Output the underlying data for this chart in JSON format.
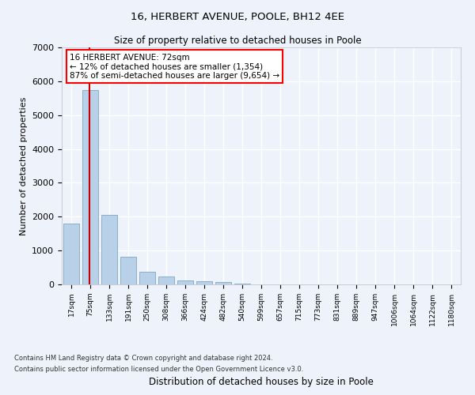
{
  "title1": "16, HERBERT AVENUE, POOLE, BH12 4EE",
  "title2": "Size of property relative to detached houses in Poole",
  "xlabel": "Distribution of detached houses by size in Poole",
  "ylabel": "Number of detached properties",
  "categories": [
    "17sqm",
    "75sqm",
    "133sqm",
    "191sqm",
    "250sqm",
    "308sqm",
    "366sqm",
    "424sqm",
    "482sqm",
    "540sqm",
    "599sqm",
    "657sqm",
    "715sqm",
    "773sqm",
    "831sqm",
    "889sqm",
    "947sqm",
    "1006sqm",
    "1064sqm",
    "1122sqm",
    "1180sqm"
  ],
  "values": [
    1800,
    5750,
    2050,
    820,
    370,
    235,
    120,
    90,
    60,
    30,
    5,
    0,
    0,
    0,
    0,
    0,
    0,
    0,
    0,
    0,
    0
  ],
  "bar_color": "#b8d0e8",
  "bar_edge_color": "#8aafc8",
  "annotation_line1": "16 HERBERT AVENUE: 72sqm",
  "annotation_line2": "← 12% of detached houses are smaller (1,354)",
  "annotation_line3": "87% of semi-detached houses are larger (9,654) →",
  "property_line_color": "#cc0000",
  "background_color": "#eef2fa",
  "plot_background": "#eef2fa",
  "grid_color": "#ffffff",
  "footer1": "Contains HM Land Registry data © Crown copyright and database right 2024.",
  "footer2": "Contains public sector information licensed under the Open Government Licence v3.0.",
  "ylim": [
    0,
    7000
  ],
  "yticks": [
    0,
    1000,
    2000,
    3000,
    4000,
    5000,
    6000,
    7000
  ]
}
